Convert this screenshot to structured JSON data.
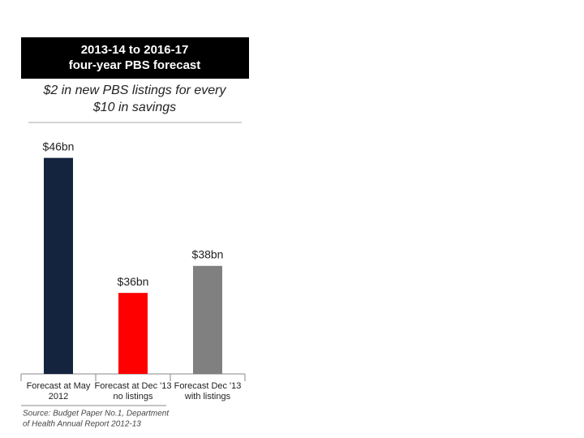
{
  "chart_data": {
    "type": "bar",
    "title": [
      "2013-14 to 2016-17",
      "four-year PBS forecast"
    ],
    "subtitle": [
      "$2 in new PBS listings for every",
      "$10 in savings"
    ],
    "categories": [
      [
        "Forecast at May",
        "2012"
      ],
      [
        "Forecast at Dec '13",
        "no listings"
      ],
      [
        "Forecast Dec '13",
        "with listings"
      ]
    ],
    "values": [
      46,
      36,
      38
    ],
    "value_labels": [
      "$46bn",
      "$36bn",
      "$38bn"
    ],
    "colors": [
      "#14243f",
      "#ff0000",
      "#808080"
    ],
    "ylim": [
      30,
      47
    ],
    "source": [
      "Source: Budget Paper No.1, Department",
      "of Health Annual Report 2012-13"
    ]
  }
}
